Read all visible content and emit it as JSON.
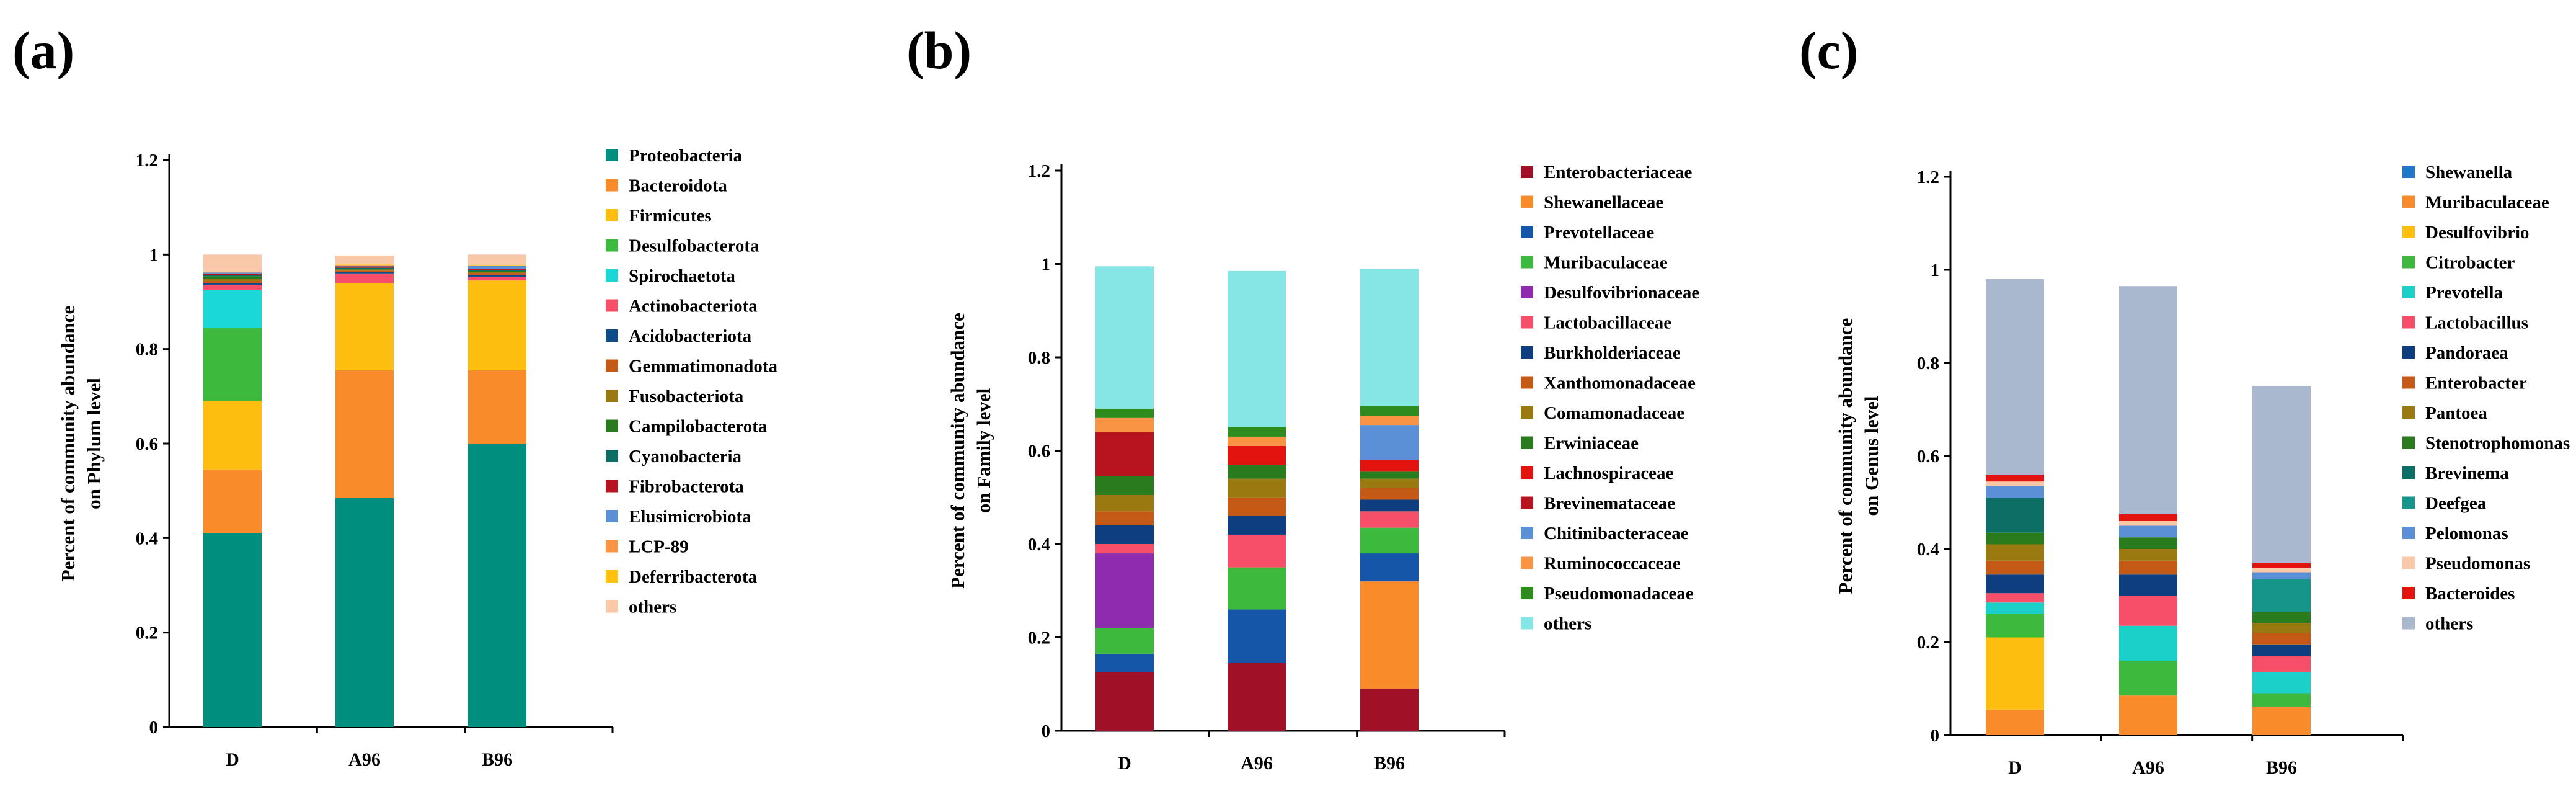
{
  "chart_data": [
    {
      "panel": "(a)",
      "type": "bar",
      "stacked": true,
      "ylabel_lines": [
        "Percent of community abundance",
        "on Phylum level"
      ],
      "ylim": [
        0,
        1.2
      ],
      "yticks": [
        "0",
        "0.2",
        "0.4",
        "0.6",
        "0.8",
        "1",
        "1.2"
      ],
      "categories": [
        "D",
        "A96",
        "B96"
      ],
      "series": [
        {
          "name": "Proteobacteria",
          "color": "#008F7F",
          "values": [
            0.41,
            0.485,
            0.6
          ]
        },
        {
          "name": "Bacteroidota",
          "color": "#F98B2B",
          "values": [
            0.135,
            0.27,
            0.155
          ]
        },
        {
          "name": "Firmicutes",
          "color": "#FDBE0F",
          "values": [
            0.145,
            0.185,
            0.19
          ]
        },
        {
          "name": "Desulfobacterota",
          "color": "#3DB93D",
          "values": [
            0.155,
            0.0,
            0.0
          ]
        },
        {
          "name": "Spirochaetota",
          "color": "#1BD8D8",
          "values": [
            0.08,
            0.0,
            0.0
          ]
        },
        {
          "name": "Actinobacteriota",
          "color": "#F74F69",
          "values": [
            0.01,
            0.02,
            0.008
          ]
        },
        {
          "name": "Acidobacteriota",
          "color": "#0F4C8A",
          "values": [
            0.005,
            0.003,
            0.004
          ]
        },
        {
          "name": "Gemmatimonadota",
          "color": "#C45A16",
          "values": [
            0.004,
            0.003,
            0.004
          ]
        },
        {
          "name": "Fusobacteriota",
          "color": "#9A7A10",
          "values": [
            0.004,
            0.002,
            0.002
          ]
        },
        {
          "name": "Campilobacterota",
          "color": "#2A7A1E",
          "values": [
            0.006,
            0.002,
            0.002
          ]
        },
        {
          "name": "Cyanobacteria",
          "color": "#0C6E65",
          "values": [
            0.003,
            0.002,
            0.002
          ]
        },
        {
          "name": "Fibrobacterota",
          "color": "#B81420",
          "values": [
            0.003,
            0.003,
            0.003
          ]
        },
        {
          "name": "Elusimicrobiota",
          "color": "#5B8FD6",
          "values": [
            0.002,
            0.002,
            0.006
          ]
        },
        {
          "name": "LCP-89",
          "color": "#F99444",
          "values": [
            0.001,
            0.001,
            0.001
          ]
        },
        {
          "name": "Deferribacterota",
          "color": "#FFC20E",
          "values": [
            0.001,
            0.001,
            0.001
          ]
        },
        {
          "name": "others",
          "color": "#F8C8A8",
          "values": [
            0.036,
            0.019,
            0.022
          ]
        }
      ]
    },
    {
      "panel": "(b)",
      "type": "bar",
      "stacked": true,
      "ylabel_lines": [
        "Percent of community abundance",
        "on Family level"
      ],
      "ylim": [
        0,
        1.2
      ],
      "yticks": [
        "0",
        "0.2",
        "0.4",
        "0.6",
        "0.8",
        "1",
        "1.2"
      ],
      "categories": [
        "D",
        "A96",
        "B96"
      ],
      "series": [
        {
          "name": "Enterobacteriaceae",
          "color": "#A01026",
          "values": [
            0.125,
            0.145,
            0.09
          ]
        },
        {
          "name": "Shewanellaceae",
          "color": "#F98B2B",
          "values": [
            0.0,
            0.0,
            0.23
          ]
        },
        {
          "name": "Prevotellaceae",
          "color": "#1556A8",
          "values": [
            0.04,
            0.115,
            0.06
          ]
        },
        {
          "name": "Muribaculaceae",
          "color": "#3DB93D",
          "values": [
            0.055,
            0.09,
            0.055
          ]
        },
        {
          "name": "Desulfovibrionaceae",
          "color": "#8E2BAE",
          "values": [
            0.16,
            0.0,
            0.0
          ]
        },
        {
          "name": "Lactobacillaceae",
          "color": "#F74F69",
          "values": [
            0.02,
            0.07,
            0.035
          ]
        },
        {
          "name": "Burkholderiaceae",
          "color": "#0F3E80",
          "values": [
            0.04,
            0.04,
            0.025
          ]
        },
        {
          "name": "Xanthomonadaceae",
          "color": "#C45A16",
          "values": [
            0.03,
            0.04,
            0.025
          ]
        },
        {
          "name": "Comamonadaceae",
          "color": "#9A7A10",
          "values": [
            0.035,
            0.04,
            0.02
          ]
        },
        {
          "name": "Erwiniaceae",
          "color": "#2A7A1E",
          "values": [
            0.04,
            0.03,
            0.015
          ]
        },
        {
          "name": "Lachnospiraceae",
          "color": "#E3140F",
          "values": [
            0.0,
            0.04,
            0.025
          ]
        },
        {
          "name": "Brevinemataceae",
          "color": "#B81420",
          "values": [
            0.095,
            0.0,
            0.0
          ]
        },
        {
          "name": "Chitinibacteraceae",
          "color": "#5B8FD6",
          "values": [
            0.0,
            0.0,
            0.075
          ]
        },
        {
          "name": "Ruminococcaceae",
          "color": "#F99444",
          "values": [
            0.03,
            0.02,
            0.02
          ]
        },
        {
          "name": "Pseudomonadaceae",
          "color": "#2E8B1E",
          "values": [
            0.02,
            0.02,
            0.02
          ]
        },
        {
          "name": "others",
          "color": "#86E6E6",
          "values": [
            0.305,
            0.335,
            0.295
          ]
        }
      ]
    },
    {
      "panel": "(c)",
      "type": "bar",
      "stacked": true,
      "ylabel_lines": [
        "Percent of community abundance",
        "on Genus level"
      ],
      "ylim": [
        0,
        1.2
      ],
      "yticks": [
        "0",
        "0.2",
        "0.4",
        "0.6",
        "0.8",
        "1",
        "1.2"
      ],
      "categories": [
        "D",
        "A96",
        "B96"
      ],
      "series": [
        {
          "name": "Shewanella",
          "color": "#1F77C8",
          "values": [
            0.0,
            0.0,
            0.0
          ]
        },
        {
          "name": "Muribaculaceae",
          "color": "#F98B2B",
          "values": [
            0.055,
            0.085,
            0.06
          ]
        },
        {
          "name": "Desulfovibrio",
          "color": "#FDBE0F",
          "values": [
            0.155,
            0.0,
            0.0
          ]
        },
        {
          "name": "Citrobacter",
          "color": "#3DB93D",
          "values": [
            0.05,
            0.075,
            0.03
          ]
        },
        {
          "name": "Prevotella",
          "color": "#1BD0C8",
          "values": [
            0.025,
            0.075,
            0.045
          ]
        },
        {
          "name": "Lactobacillus",
          "color": "#F74F69",
          "values": [
            0.02,
            0.065,
            0.035
          ]
        },
        {
          "name": "Pandoraea",
          "color": "#0F3E80",
          "values": [
            0.04,
            0.045,
            0.025
          ]
        },
        {
          "name": "Enterobacter",
          "color": "#C45A16",
          "values": [
            0.03,
            0.03,
            0.025
          ]
        },
        {
          "name": "Pantoea",
          "color": "#9A7A10",
          "values": [
            0.035,
            0.025,
            0.02
          ]
        },
        {
          "name": "Stenotrophomonas",
          "color": "#2A7A1E",
          "values": [
            0.025,
            0.025,
            0.025
          ]
        },
        {
          "name": "Brevinema",
          "color": "#0C6E65",
          "values": [
            0.075,
            0.0,
            0.0
          ]
        },
        {
          "name": "Deefgea",
          "color": "#16958A",
          "values": [
            0.0,
            0.0,
            0.07
          ]
        },
        {
          "name": "Pelomonas",
          "color": "#5B8FD6",
          "values": [
            0.025,
            0.025,
            0.015
          ]
        },
        {
          "name": "Pseudomonas",
          "color": "#F8C8A8",
          "values": [
            0.01,
            0.01,
            0.01
          ]
        },
        {
          "name": "Bacteroides",
          "color": "#E3140F",
          "values": [
            0.015,
            0.015,
            0.01
          ]
        },
        {
          "name": "others",
          "color": "#A9B8CE",
          "values": [
            0.42,
            0.49,
            0.38
          ]
        }
      ]
    }
  ]
}
